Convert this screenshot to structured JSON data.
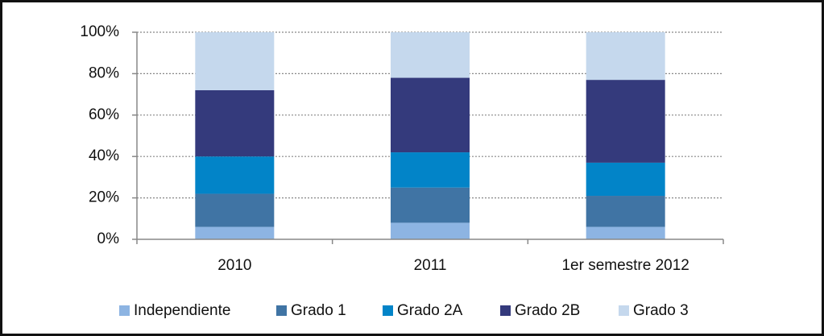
{
  "chart_data": {
    "type": "stacked_bar",
    "categories": [
      "2010",
      "2011",
      "1er semestre 2012"
    ],
    "series": [
      {
        "name": "Independiente",
        "color": "#8db4e2",
        "values": [
          6,
          8,
          6
        ]
      },
      {
        "name": "Grado 1",
        "color": "#4074a4",
        "values": [
          16,
          17,
          15
        ]
      },
      {
        "name": "Grado 2A",
        "color": "#0284c8",
        "values": [
          18,
          17,
          16
        ]
      },
      {
        "name": "Grado 2B",
        "color": "#343a7c",
        "values": [
          32,
          36,
          40
        ]
      },
      {
        "name": "Grado 3",
        "color": "#c5d8ed",
        "values": [
          28,
          22,
          23
        ]
      }
    ],
    "ylim": [
      0,
      100
    ],
    "yticks": [
      {
        "value": 0,
        "label": "0%"
      },
      {
        "value": 20,
        "label": "20%"
      },
      {
        "value": 40,
        "label": "40%"
      },
      {
        "value": 60,
        "label": "60%"
      },
      {
        "value": 80,
        "label": "80%"
      },
      {
        "value": 100,
        "label": "100%"
      }
    ],
    "grid": true,
    "legend": "bottom"
  }
}
